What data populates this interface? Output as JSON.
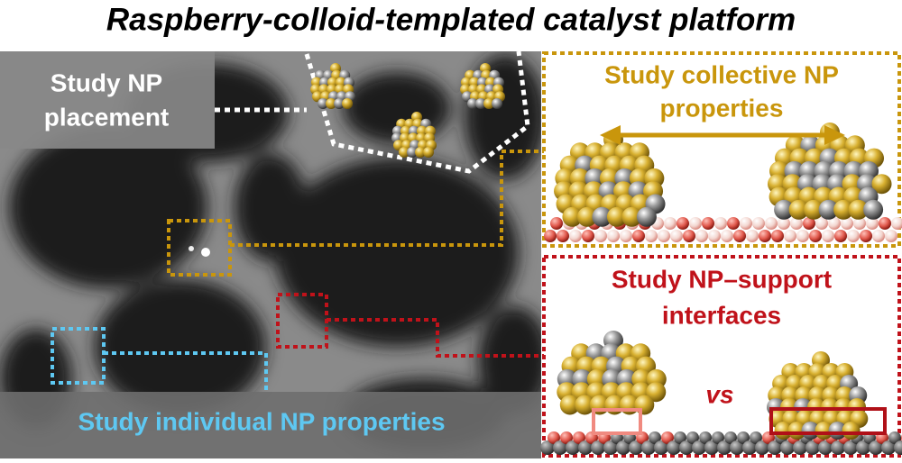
{
  "title": "Raspberry-colloid-templated catalyst platform",
  "labels": {
    "placement": [
      "Study NP",
      "placement"
    ],
    "collective": [
      "Study collective NP",
      "properties"
    ],
    "interfaces": [
      "Study NP–support",
      "interfaces"
    ],
    "vs": "vs",
    "individual": "Study individual NP properties"
  }
}
